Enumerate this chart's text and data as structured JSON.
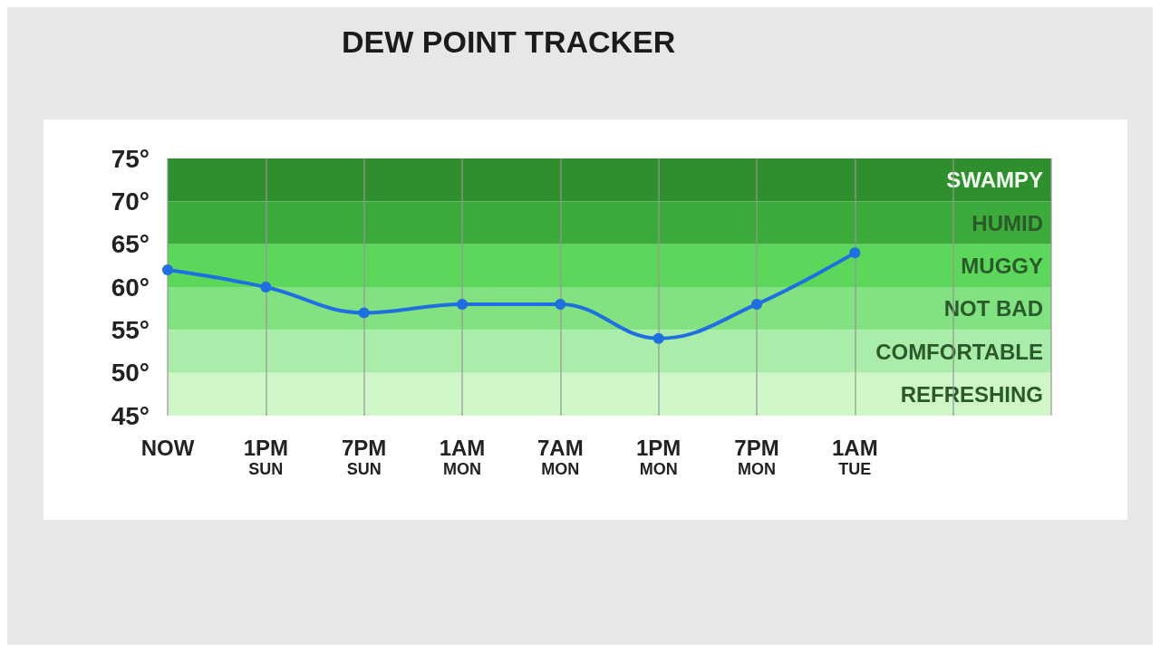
{
  "chart_data": {
    "type": "line",
    "title": "DEW POINT TRACKER",
    "categories": [
      "NOW",
      "1PM\nSUN",
      "7PM\nSUN",
      "1AM\nMON",
      "7AM\nMON",
      "1PM\nMON",
      "7PM\nMON",
      "1AM\nTUE",
      null,
      null
    ],
    "series": [
      {
        "color": "#1f6fe0",
        "values": [
          62,
          60,
          57,
          58,
          58,
          54,
          58,
          64,
          null,
          null
        ]
      }
    ],
    "ylim": [
      45,
      75
    ],
    "yticks": [
      {
        "value": 45,
        "label": "45°"
      },
      {
        "value": 50,
        "label": "50°"
      },
      {
        "value": 55,
        "label": "55°"
      },
      {
        "value": 60,
        "label": "60°"
      },
      {
        "value": 65,
        "label": "65°"
      },
      {
        "value": 70,
        "label": "70°"
      },
      {
        "value": 75,
        "label": "75°"
      }
    ],
    "bands": [
      {
        "axis": "y",
        "from": 70,
        "to": 75,
        "label": "SWAMPY",
        "color": "#2f8f2f"
      },
      {
        "axis": "y",
        "from": 65,
        "to": 70,
        "label": "HUMID",
        "color": "#3cab3c"
      },
      {
        "axis": "y",
        "from": 60,
        "to": 65,
        "label": "MUGGY",
        "color": "#5cd75c"
      },
      {
        "axis": "y",
        "from": 55,
        "to": 60,
        "label": "NOT BAD",
        "color": "#82e282"
      },
      {
        "axis": "y",
        "from": 50,
        "to": 55,
        "label": "COMFORTABLE",
        "color": "#aaecaa"
      },
      {
        "axis": "y",
        "from": 45,
        "to": 50,
        "label": "REFRESHING",
        "color": "#d0f6c8"
      }
    ],
    "grid": "x",
    "marker": "circle",
    "line_style": "solid"
  }
}
